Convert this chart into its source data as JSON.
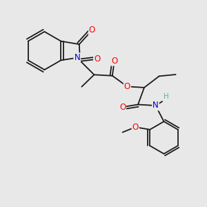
{
  "background_color": "#e8e8e8",
  "bond_color": "#1a1a1a",
  "atom_colors": {
    "O": "#ff0000",
    "N": "#0000cc",
    "H": "#5aafaf",
    "C": "#1a1a1a"
  },
  "lw": 1.3,
  "fontsize": 8.5
}
